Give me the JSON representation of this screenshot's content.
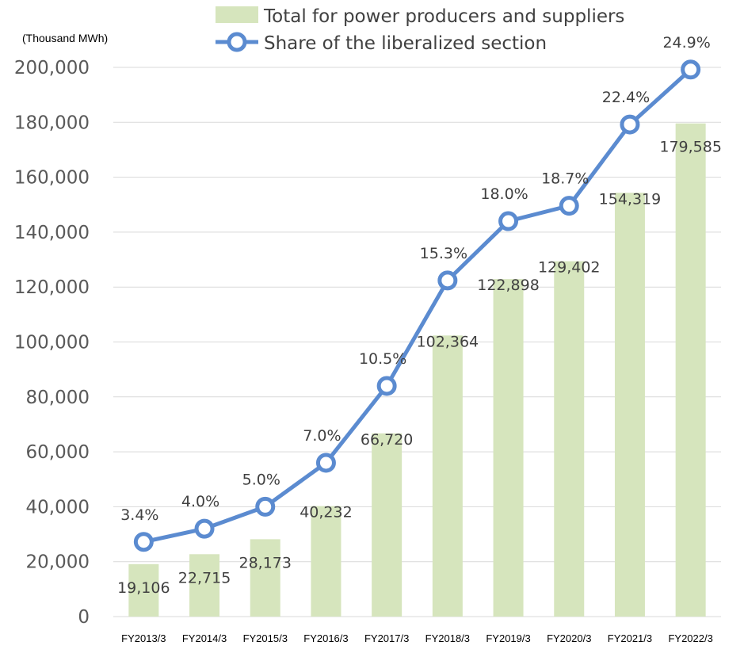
{
  "chart_data": {
    "type": "bar",
    "unit_label": "(Thousand MWh)",
    "categories": [
      "FY2013/3",
      "FY2014/3",
      "FY2015/3",
      "FY2016/3",
      "FY2017/3",
      "FY2018/3",
      "FY2019/3",
      "FY2020/3",
      "FY2021/3",
      "FY2022/3"
    ],
    "ylim": [
      0,
      200000
    ],
    "yticks": [
      0,
      20000,
      40000,
      60000,
      80000,
      100000,
      120000,
      140000,
      160000,
      180000,
      200000
    ],
    "ytick_labels": [
      "0",
      "20,000",
      "40,000",
      "60,000",
      "80,000",
      "100,000",
      "120,000",
      "140,000",
      "160,000",
      "180,000",
      "200,000"
    ],
    "grid": true,
    "legend_position": "top",
    "series": [
      {
        "name": "Total for power producers and suppliers",
        "kind": "bar",
        "color": "#d6e5bd",
        "values": [
          19106,
          22715,
          28173,
          40232,
          66720,
          102364,
          122898,
          129402,
          154319,
          179585
        ],
        "labels": [
          "19,106",
          "22,715",
          "28,173",
          "40,232",
          "66,720",
          "102,364",
          "122,898",
          "129,402",
          "154,319",
          "179,585"
        ]
      },
      {
        "name": "Share of the liberalized section",
        "kind": "line",
        "color": "#5b8bd0",
        "values": [
          3.4,
          4.0,
          5.0,
          7.0,
          10.5,
          15.3,
          18.0,
          18.7,
          22.4,
          24.9
        ],
        "labels": [
          "3.4%",
          "4.0%",
          "5.0%",
          "7.0%",
          "10.5%",
          "15.3%",
          "18.0%",
          "18.7%",
          "22.4%",
          "24.9%"
        ],
        "ylim": [
          0,
          25
        ]
      }
    ]
  }
}
